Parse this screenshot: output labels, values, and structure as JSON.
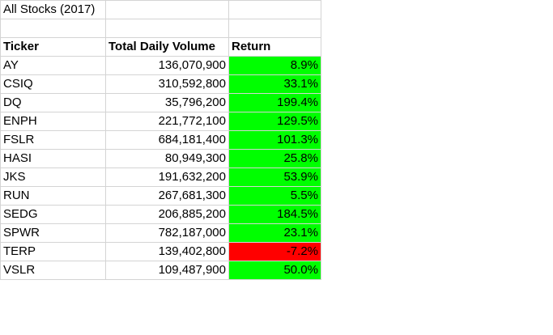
{
  "sheet": {
    "title": "All Stocks (2017)",
    "headers": {
      "ticker": "Ticker",
      "volume": "Total Daily Volume",
      "return": "Return"
    },
    "colors": {
      "positive": "#00ff00",
      "negative": "#ff0000",
      "gridline": "#d4d4d4"
    },
    "rows": [
      {
        "ticker": "AY",
        "volume": "136,070,900",
        "return": "8.9%",
        "positive": true
      },
      {
        "ticker": "CSIQ",
        "volume": "310,592,800",
        "return": "33.1%",
        "positive": true
      },
      {
        "ticker": "DQ",
        "volume": "35,796,200",
        "return": "199.4%",
        "positive": true
      },
      {
        "ticker": "ENPH",
        "volume": "221,772,100",
        "return": "129.5%",
        "positive": true
      },
      {
        "ticker": "FSLR",
        "volume": "684,181,400",
        "return": "101.3%",
        "positive": true
      },
      {
        "ticker": "HASI",
        "volume": "80,949,300",
        "return": "25.8%",
        "positive": true
      },
      {
        "ticker": "JKS",
        "volume": "191,632,200",
        "return": "53.9%",
        "positive": true
      },
      {
        "ticker": "RUN",
        "volume": "267,681,300",
        "return": "5.5%",
        "positive": true
      },
      {
        "ticker": "SEDG",
        "volume": "206,885,200",
        "return": "184.5%",
        "positive": true
      },
      {
        "ticker": "SPWR",
        "volume": "782,187,000",
        "return": "23.1%",
        "positive": true
      },
      {
        "ticker": "TERP",
        "volume": "139,402,800",
        "return": "-7.2%",
        "positive": false
      },
      {
        "ticker": "VSLR",
        "volume": "109,487,900",
        "return": "50.0%",
        "positive": true
      }
    ]
  }
}
